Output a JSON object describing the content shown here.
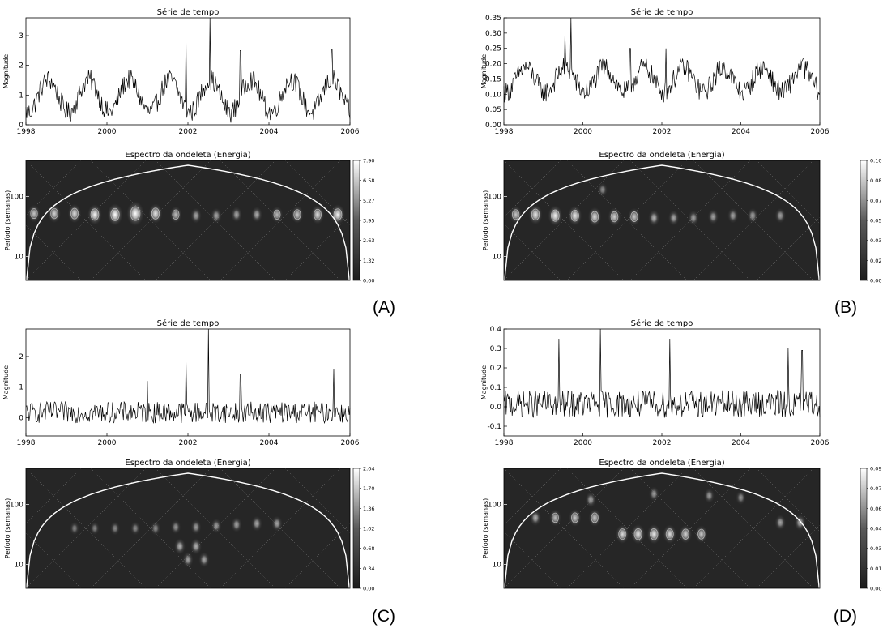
{
  "panels": [
    {
      "label": "(A)",
      "time_series": {
        "title": "Série de tempo",
        "ylabel": "Magnitude",
        "x_ticks": [
          "1998",
          "2000",
          "2002",
          "2004",
          "2006"
        ],
        "y_ticks": [
          "0",
          "1",
          "2",
          "3"
        ],
        "xlim": [
          1998,
          2006
        ],
        "ylim": [
          0,
          3.6
        ],
        "base": 0.9,
        "amp": 0.55,
        "noise": 0.35,
        "floor": 0.05,
        "spikes": [
          [
            2001.95,
            2.9
          ],
          [
            2002.55,
            3.6
          ],
          [
            2003.3,
            2.5
          ],
          [
            2005.55,
            2.55
          ]
        ]
      },
      "spectrum": {
        "title": "Espectro da ondeleta (Energia)",
        "ylabel": "Período (semanas)",
        "y_ticks": [
          "10",
          "100"
        ],
        "colorbar_ticks": [
          "7.90",
          "6.58",
          "5.27",
          "3.95",
          "2.63",
          "1.32",
          "0.00"
        ],
        "blobs": [
          {
            "x": 1998.2,
            "p": 52,
            "a": 0.45
          },
          {
            "x": 1998.7,
            "p": 52,
            "a": 0.5
          },
          {
            "x": 1999.2,
            "p": 52,
            "a": 0.55
          },
          {
            "x": 1999.7,
            "p": 50,
            "a": 0.65
          },
          {
            "x": 2000.2,
            "p": 50,
            "a": 0.75
          },
          {
            "x": 2000.7,
            "p": 52,
            "a": 0.95
          },
          {
            "x": 2001.2,
            "p": 52,
            "a": 0.6
          },
          {
            "x": 2001.7,
            "p": 50,
            "a": 0.4
          },
          {
            "x": 2002.2,
            "p": 48,
            "a": 0.3
          },
          {
            "x": 2002.7,
            "p": 48,
            "a": 0.3
          },
          {
            "x": 2003.2,
            "p": 50,
            "a": 0.3
          },
          {
            "x": 2003.7,
            "p": 50,
            "a": 0.32
          },
          {
            "x": 2004.2,
            "p": 50,
            "a": 0.38
          },
          {
            "x": 2004.7,
            "p": 50,
            "a": 0.45
          },
          {
            "x": 2005.2,
            "p": 50,
            "a": 0.55
          },
          {
            "x": 2005.7,
            "p": 50,
            "a": 0.65
          }
        ]
      }
    },
    {
      "label": "(B)",
      "time_series": {
        "title": "Série de tempo",
        "ylabel": "Magnitude",
        "x_ticks": [
          "1998",
          "2000",
          "2002",
          "2004",
          "2006"
        ],
        "y_ticks": [
          "0.00",
          "0.05",
          "0.10",
          "0.15",
          "0.20",
          "0.25",
          "0.30",
          "0.35"
        ],
        "xlim": [
          1998,
          2006
        ],
        "ylim": [
          0,
          0.35
        ],
        "base": 0.14,
        "amp": 0.04,
        "noise": 0.035,
        "floor": 0.03,
        "spikes": [
          [
            1999.7,
            0.35
          ],
          [
            1999.55,
            0.3
          ],
          [
            2001.2,
            0.25
          ],
          [
            2002.1,
            0.25
          ],
          [
            2005.6,
            0.22
          ]
        ]
      },
      "spectrum": {
        "title": "Espectro da ondeleta (Energia)",
        "ylabel": "Período (semanas)",
        "y_ticks": [
          "10",
          "100"
        ],
        "colorbar_ticks": [
          "0.10",
          "0.08",
          "0.07",
          "0.05",
          "0.03",
          "0.02",
          "0.00"
        ],
        "blobs": [
          {
            "x": 1998.3,
            "p": 50,
            "a": 0.45
          },
          {
            "x": 1998.8,
            "p": 50,
            "a": 0.6
          },
          {
            "x": 1999.3,
            "p": 48,
            "a": 0.65
          },
          {
            "x": 1999.8,
            "p": 48,
            "a": 0.6
          },
          {
            "x": 2000.3,
            "p": 46,
            "a": 0.55
          },
          {
            "x": 2000.8,
            "p": 46,
            "a": 0.5
          },
          {
            "x": 2001.3,
            "p": 46,
            "a": 0.45
          },
          {
            "x": 2001.8,
            "p": 44,
            "a": 0.35
          },
          {
            "x": 2002.3,
            "p": 44,
            "a": 0.3
          },
          {
            "x": 2002.8,
            "p": 44,
            "a": 0.28
          },
          {
            "x": 2003.3,
            "p": 46,
            "a": 0.28
          },
          {
            "x": 2003.8,
            "p": 48,
            "a": 0.28
          },
          {
            "x": 2004.3,
            "p": 48,
            "a": 0.28
          },
          {
            "x": 2005.0,
            "p": 48,
            "a": 0.28
          },
          {
            "x": 2000.5,
            "p": 130,
            "a": 0.2
          }
        ]
      }
    },
    {
      "label": "(C)",
      "time_series": {
        "title": "Série de tempo",
        "ylabel": "Magnitude",
        "x_ticks": [
          "1998",
          "2000",
          "2002",
          "2004",
          "2006"
        ],
        "y_ticks": [
          "0",
          "1",
          "2"
        ],
        "xlim": [
          1998,
          2006
        ],
        "ylim": [
          -0.6,
          2.9
        ],
        "base": 0.1,
        "amp": 0.0,
        "noise": 0.35,
        "floor": -0.55,
        "spikes": [
          [
            2001.95,
            1.9
          ],
          [
            2002.5,
            2.9
          ],
          [
            2003.3,
            1.4
          ],
          [
            2001.0,
            1.2
          ],
          [
            2005.6,
            1.6
          ]
        ]
      },
      "spectrum": {
        "title": "Espectro da ondeleta (Energia)",
        "ylabel": "Período (semanas)",
        "y_ticks": [
          "10",
          "100"
        ],
        "colorbar_ticks": [
          "2.04",
          "1.70",
          "1.36",
          "1.02",
          "0.68",
          "0.34",
          "0.00"
        ],
        "blobs": [
          {
            "x": 1999.2,
            "p": 40,
            "a": 0.15
          },
          {
            "x": 1999.7,
            "p": 40,
            "a": 0.15
          },
          {
            "x": 2000.2,
            "p": 40,
            "a": 0.18
          },
          {
            "x": 2000.7,
            "p": 40,
            "a": 0.18
          },
          {
            "x": 2001.2,
            "p": 40,
            "a": 0.2
          },
          {
            "x": 2001.7,
            "p": 42,
            "a": 0.22
          },
          {
            "x": 2002.2,
            "p": 42,
            "a": 0.25
          },
          {
            "x": 2002.7,
            "p": 44,
            "a": 0.25
          },
          {
            "x": 2003.2,
            "p": 46,
            "a": 0.28
          },
          {
            "x": 2003.7,
            "p": 48,
            "a": 0.3
          },
          {
            "x": 2004.2,
            "p": 48,
            "a": 0.3
          },
          {
            "x": 2001.8,
            "p": 20,
            "a": 0.35
          },
          {
            "x": 2002.2,
            "p": 20,
            "a": 0.35
          },
          {
            "x": 2002.0,
            "p": 12,
            "a": 0.3
          },
          {
            "x": 2002.4,
            "p": 12,
            "a": 0.3
          }
        ]
      }
    },
    {
      "label": "(D)",
      "time_series": {
        "title": "Série de tempo",
        "ylabel": "Magnitude",
        "x_ticks": [
          "1998",
          "2000",
          "2002",
          "2004",
          "2006"
        ],
        "y_ticks": [
          "-0.1",
          "0.0",
          "0.1",
          "0.2",
          "0.3",
          "0.4"
        ],
        "xlim": [
          1998,
          2006
        ],
        "ylim": [
          -0.15,
          0.4
        ],
        "base": 0.0,
        "amp": 0.0,
        "noise": 0.07,
        "floor": -0.15,
        "spikes": [
          [
            1999.4,
            0.35
          ],
          [
            2000.45,
            0.4
          ],
          [
            2002.2,
            0.35
          ],
          [
            2005.2,
            0.3
          ],
          [
            2005.55,
            0.29
          ]
        ]
      },
      "spectrum": {
        "title": "Espectro da ondeleta (Energia)",
        "ylabel": "Período (semanas)",
        "y_ticks": [
          "10",
          "100"
        ],
        "colorbar_ticks": [
          "0.09",
          "0.07",
          "0.06",
          "0.04",
          "0.03",
          "0.01",
          "0.00"
        ],
        "blobs": [
          {
            "x": 1998.8,
            "p": 60,
            "a": 0.35
          },
          {
            "x": 1999.3,
            "p": 60,
            "a": 0.4
          },
          {
            "x": 1999.8,
            "p": 60,
            "a": 0.45
          },
          {
            "x": 2000.3,
            "p": 60,
            "a": 0.45
          },
          {
            "x": 2001.0,
            "p": 32,
            "a": 0.55
          },
          {
            "x": 2001.4,
            "p": 32,
            "a": 0.6
          },
          {
            "x": 2001.8,
            "p": 32,
            "a": 0.6
          },
          {
            "x": 2002.2,
            "p": 32,
            "a": 0.55
          },
          {
            "x": 2002.6,
            "p": 32,
            "a": 0.5
          },
          {
            "x": 2003.0,
            "p": 32,
            "a": 0.45
          },
          {
            "x": 2000.2,
            "p": 120,
            "a": 0.3
          },
          {
            "x": 2001.8,
            "p": 150,
            "a": 0.25
          },
          {
            "x": 2003.2,
            "p": 140,
            "a": 0.25
          },
          {
            "x": 2004.0,
            "p": 130,
            "a": 0.22
          },
          {
            "x": 2005.0,
            "p": 50,
            "a": 0.3
          },
          {
            "x": 2005.5,
            "p": 50,
            "a": 0.35
          }
        ]
      }
    }
  ]
}
